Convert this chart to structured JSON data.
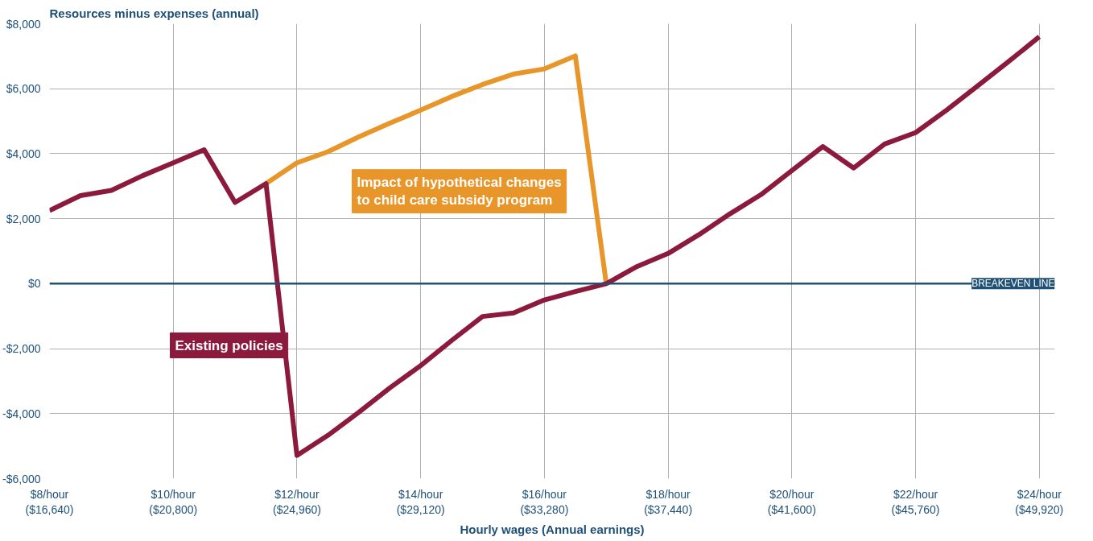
{
  "chart_data": {
    "type": "line",
    "title": "Resources minus expenses (annual)",
    "xlabel": "Hourly wages (Annual earnings)",
    "categories": [
      "$8/hour\n($16,640)",
      null,
      null,
      null,
      "$10/hour\n($20,800)",
      null,
      null,
      null,
      "$12/hour\n($24,960)",
      null,
      null,
      null,
      "$14/hour\n($29,120)",
      null,
      null,
      null,
      "$16/hour\n($33,280)",
      null,
      null,
      null,
      "$18/hour\n($37,440)",
      null,
      null,
      null,
      "$20/hour\n($41,600)",
      null,
      null,
      null,
      "$22/hour\n($45,760)",
      null,
      null,
      null,
      "$24/hour\n($49,920)"
    ],
    "ylim": [
      -6000,
      8000
    ],
    "yticks": [
      {
        "value": -6000,
        "label": "-$6,000"
      },
      {
        "value": -4000,
        "label": "-$4,000"
      },
      {
        "value": -2000,
        "label": "-$2,000"
      },
      {
        "value": 0,
        "label": "$0"
      },
      {
        "value": 2000,
        "label": "$2,000"
      },
      {
        "value": 4000,
        "label": "$4,000"
      },
      {
        "value": 6000,
        "label": "$6,000"
      },
      {
        "value": 8000,
        "label": "$8,000"
      }
    ],
    "grid": true,
    "line_style": "solid",
    "series": [
      {
        "name": "Impact of hypothetical changes\nto child care subsidy program",
        "color": "#e8962a",
        "values": [
          null,
          null,
          null,
          null,
          null,
          null,
          null,
          3080,
          3720,
          4060,
          4520,
          4940,
          5340,
          5760,
          6130,
          6450,
          6610,
          7010,
          0,
          null,
          null,
          null,
          null,
          null,
          null,
          null,
          null,
          null,
          null,
          null,
          null,
          null,
          null
        ]
      },
      {
        "name": "Existing policies",
        "color": "#8c1a3c",
        "values": [
          2250,
          2710,
          2870,
          3320,
          3720,
          4120,
          2500,
          3080,
          -5290,
          -4670,
          -3960,
          -3210,
          -2520,
          -1750,
          -1010,
          -900,
          -500,
          -240,
          0,
          530,
          930,
          1510,
          2150,
          2740,
          3480,
          4220,
          3560,
          4300,
          4650,
          5340,
          6080,
          6830,
          7600
        ]
      }
    ],
    "ref_lines": [
      {
        "axis": "y",
        "value": 0,
        "label": "BREAKEVEN LINE",
        "color": "#1f5078"
      }
    ]
  }
}
